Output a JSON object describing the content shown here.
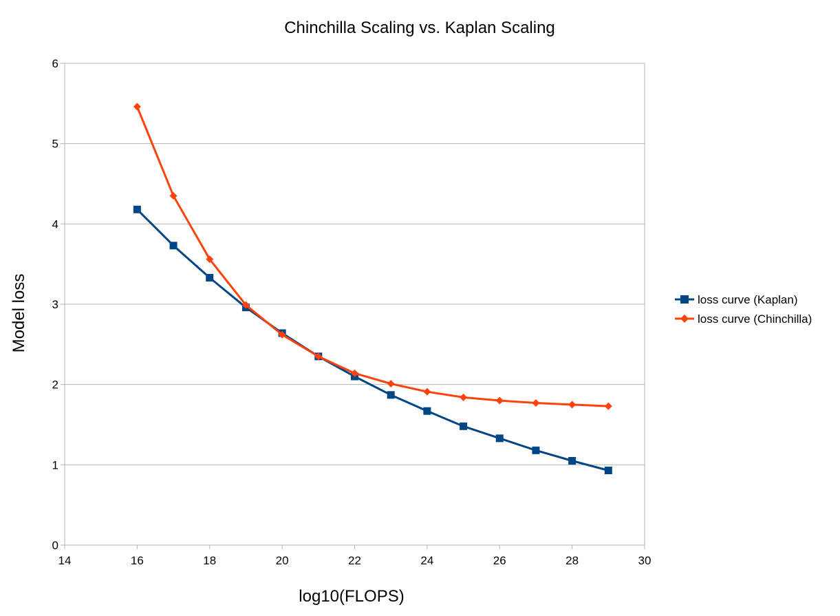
{
  "chart_data": {
    "type": "line",
    "title": "Chinchilla Scaling vs. Kaplan Scaling",
    "xlabel": "log10(FLOPS)",
    "ylabel": "Model loss",
    "xlim": [
      14,
      30
    ],
    "ylim": [
      0,
      6
    ],
    "xticks": [
      14,
      16,
      18,
      20,
      22,
      24,
      26,
      28,
      30
    ],
    "yticks": [
      0,
      1,
      2,
      3,
      4,
      5,
      6
    ],
    "xtick_labels": [
      "14",
      "16",
      "18",
      "20",
      "22",
      "24",
      "26",
      "28",
      "30"
    ],
    "ytick_labels": [
      "0",
      "1",
      "2",
      "3",
      "4",
      "5",
      "6"
    ],
    "grid": "horizontal",
    "legend_position": "right",
    "x": [
      16,
      17,
      18,
      19,
      20,
      21,
      22,
      23,
      24,
      25,
      26,
      27,
      28,
      29
    ],
    "series": [
      {
        "name": "loss curve (Kaplan)",
        "color": "#004586",
        "marker": "square",
        "values": [
          4.18,
          3.73,
          3.33,
          2.96,
          2.64,
          2.35,
          2.1,
          1.87,
          1.67,
          1.48,
          1.33,
          1.18,
          1.05,
          0.93
        ]
      },
      {
        "name": "loss curve (Chinchilla)",
        "color": "#ff420e",
        "marker": "diamond",
        "values": [
          5.46,
          4.35,
          3.56,
          2.99,
          2.62,
          2.35,
          2.14,
          2.01,
          1.91,
          1.84,
          1.8,
          1.77,
          1.75,
          1.73
        ]
      }
    ]
  }
}
